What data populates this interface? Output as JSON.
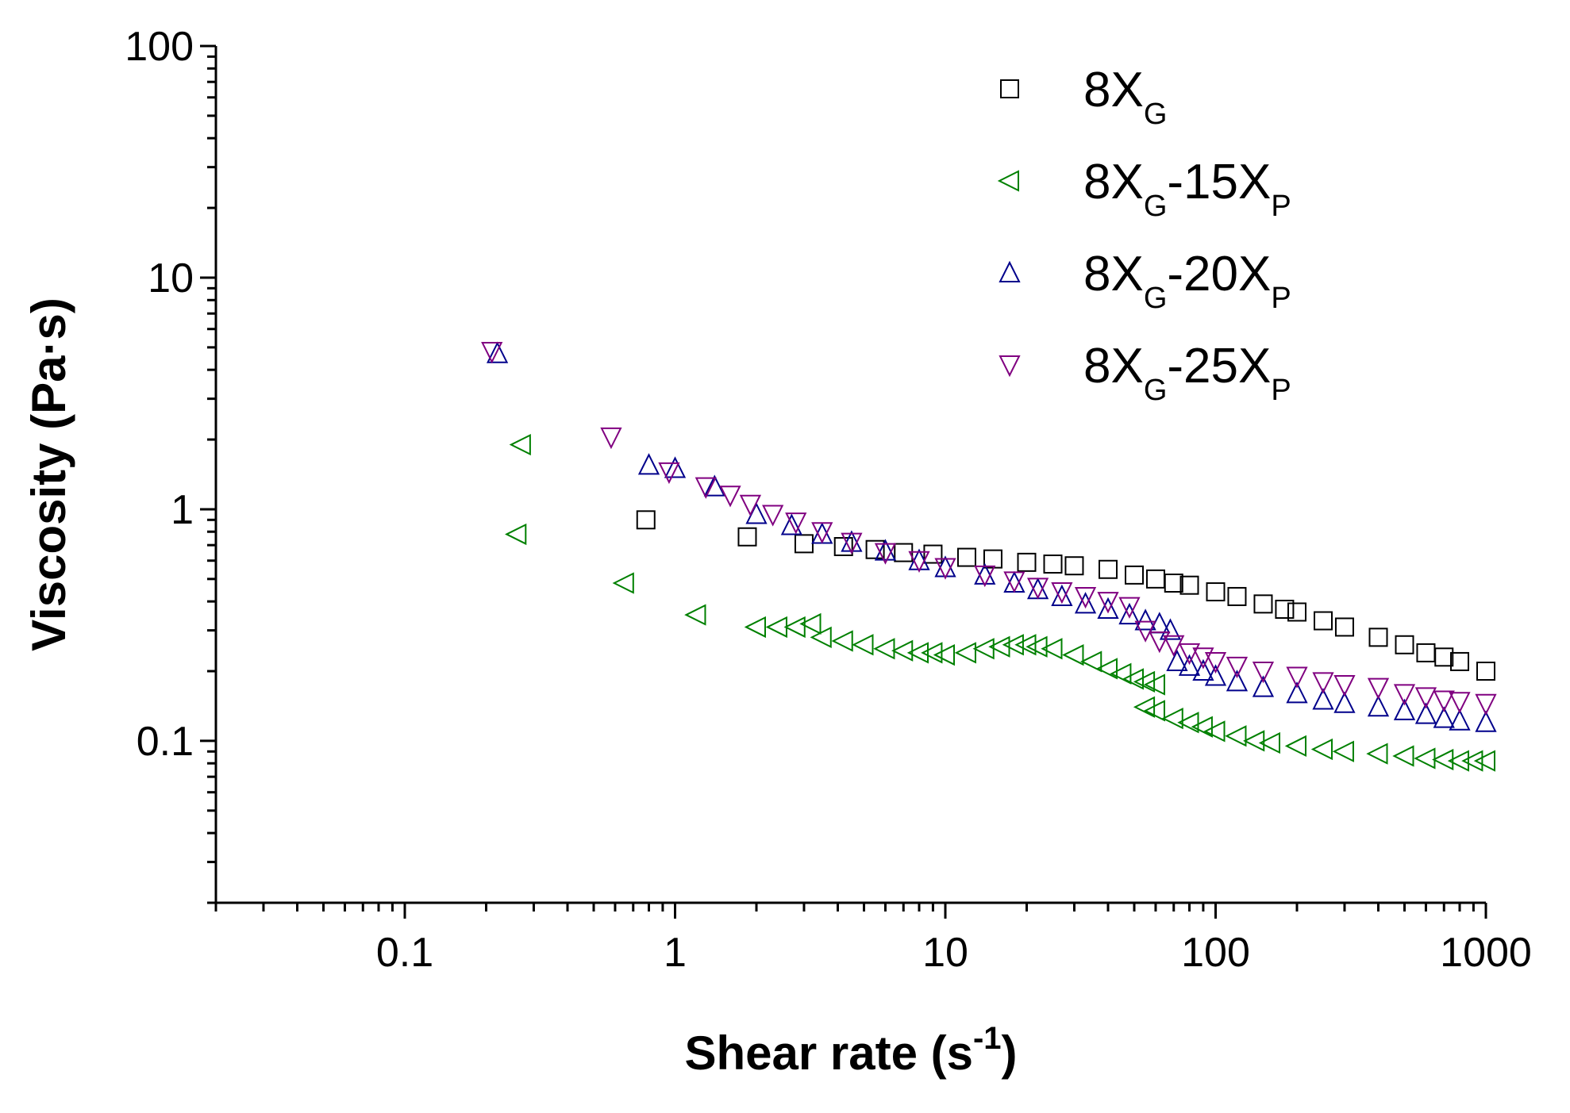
{
  "chart_data": {
    "type": "scatter",
    "xscale": "log",
    "yscale": "log",
    "xlim": [
      0.02,
      1000
    ],
    "ylim": [
      0.02,
      100
    ],
    "x_ticks": [
      {
        "value": 0.1,
        "label": "0.1"
      },
      {
        "value": 1,
        "label": "1"
      },
      {
        "value": 10,
        "label": "10"
      },
      {
        "value": 100,
        "label": "100"
      },
      {
        "value": 1000,
        "label": "1000"
      }
    ],
    "y_ticks": [
      {
        "value": 0.1,
        "label": "0.1"
      },
      {
        "value": 1,
        "label": "1"
      },
      {
        "value": 10,
        "label": "10"
      },
      {
        "value": 100,
        "label": "100"
      }
    ],
    "xlabel": {
      "text": "Shear rate  (s",
      "sup": "-1",
      "close": ")"
    },
    "ylabel": "Viscosity (Pa·s)",
    "legend_position": "top-right",
    "series": [
      {
        "key": "8XG",
        "name_main": "8X",
        "name_sub": "G",
        "name_suffix": "",
        "name_suffix_sub": "",
        "marker": "square",
        "color": "#000000",
        "points": [
          [
            0.78,
            0.9
          ],
          [
            1.85,
            0.76
          ],
          [
            3,
            0.71
          ],
          [
            4.2,
            0.69
          ],
          [
            5.5,
            0.67
          ],
          [
            7,
            0.65
          ],
          [
            9,
            0.64
          ],
          [
            12,
            0.62
          ],
          [
            15,
            0.61
          ],
          [
            20,
            0.59
          ],
          [
            25,
            0.58
          ],
          [
            30,
            0.57
          ],
          [
            40,
            0.55
          ],
          [
            50,
            0.52
          ],
          [
            60,
            0.5
          ],
          [
            70,
            0.48
          ],
          [
            80,
            0.47
          ],
          [
            100,
            0.44
          ],
          [
            120,
            0.42
          ],
          [
            150,
            0.39
          ],
          [
            180,
            0.37
          ],
          [
            200,
            0.36
          ],
          [
            250,
            0.33
          ],
          [
            300,
            0.31
          ],
          [
            400,
            0.28
          ],
          [
            500,
            0.26
          ],
          [
            600,
            0.24
          ],
          [
            700,
            0.23
          ],
          [
            800,
            0.22
          ],
          [
            1000,
            0.2
          ]
        ]
      },
      {
        "key": "8XG-15XP",
        "name_main": "8X",
        "name_sub": "G",
        "name_suffix": "-15X",
        "name_suffix_sub": "P",
        "marker": "triangle-left",
        "color": "#008000",
        "points": [
          [
            0.27,
            1.9
          ],
          [
            0.26,
            0.78
          ],
          [
            0.65,
            0.48
          ],
          [
            1.2,
            0.35
          ],
          [
            2,
            0.31
          ],
          [
            2.4,
            0.31
          ],
          [
            2.8,
            0.31
          ],
          [
            3.2,
            0.32
          ],
          [
            3.5,
            0.28
          ],
          [
            4.2,
            0.27
          ],
          [
            5,
            0.26
          ],
          [
            6,
            0.25
          ],
          [
            7,
            0.245
          ],
          [
            8,
            0.24
          ],
          [
            9,
            0.24
          ],
          [
            10,
            0.235
          ],
          [
            12,
            0.24
          ],
          [
            14,
            0.25
          ],
          [
            16,
            0.255
          ],
          [
            18,
            0.26
          ],
          [
            20,
            0.26
          ],
          [
            22,
            0.255
          ],
          [
            25,
            0.25
          ],
          [
            30,
            0.235
          ],
          [
            35,
            0.22
          ],
          [
            40,
            0.205
          ],
          [
            45,
            0.195
          ],
          [
            50,
            0.185
          ],
          [
            55,
            0.18
          ],
          [
            60,
            0.175
          ],
          [
            55,
            0.14
          ],
          [
            60,
            0.135
          ],
          [
            70,
            0.125
          ],
          [
            80,
            0.12
          ],
          [
            90,
            0.115
          ],
          [
            100,
            0.11
          ],
          [
            120,
            0.105
          ],
          [
            140,
            0.1
          ],
          [
            160,
            0.098
          ],
          [
            200,
            0.095
          ],
          [
            250,
            0.092
          ],
          [
            300,
            0.09
          ],
          [
            400,
            0.088
          ],
          [
            500,
            0.086
          ],
          [
            600,
            0.084
          ],
          [
            700,
            0.083
          ],
          [
            800,
            0.082
          ],
          [
            900,
            0.082
          ],
          [
            1000,
            0.082
          ]
        ]
      },
      {
        "key": "8XG-20XP",
        "name_main": "8X",
        "name_sub": "G",
        "name_suffix": "-20X",
        "name_suffix_sub": "P",
        "marker": "triangle-up",
        "color": "#00008b",
        "points": [
          [
            0.22,
            4.7
          ],
          [
            0.8,
            1.55
          ],
          [
            1,
            1.5
          ],
          [
            1.4,
            1.25
          ],
          [
            2,
            0.95
          ],
          [
            2.7,
            0.85
          ],
          [
            3.5,
            0.78
          ],
          [
            4.5,
            0.72
          ],
          [
            6,
            0.66
          ],
          [
            8,
            0.6
          ],
          [
            10,
            0.56
          ],
          [
            14,
            0.52
          ],
          [
            18,
            0.48
          ],
          [
            22,
            0.45
          ],
          [
            27,
            0.42
          ],
          [
            33,
            0.39
          ],
          [
            40,
            0.37
          ],
          [
            48,
            0.35
          ],
          [
            55,
            0.33
          ],
          [
            62,
            0.32
          ],
          [
            68,
            0.3
          ],
          [
            72,
            0.22
          ],
          [
            80,
            0.21
          ],
          [
            90,
            0.2
          ],
          [
            100,
            0.19
          ],
          [
            120,
            0.18
          ],
          [
            150,
            0.17
          ],
          [
            200,
            0.16
          ],
          [
            250,
            0.15
          ],
          [
            300,
            0.145
          ],
          [
            400,
            0.14
          ],
          [
            500,
            0.135
          ],
          [
            600,
            0.13
          ],
          [
            700,
            0.125
          ],
          [
            800,
            0.122
          ],
          [
            1000,
            0.12
          ]
        ]
      },
      {
        "key": "8XG-25XP",
        "name_main": "8X",
        "name_sub": "G",
        "name_suffix": "-25X",
        "name_suffix_sub": "P",
        "marker": "triangle-down",
        "color": "#800080",
        "points": [
          [
            0.21,
            4.8
          ],
          [
            0.58,
            2.05
          ],
          [
            0.95,
            1.45
          ],
          [
            1.3,
            1.25
          ],
          [
            1.6,
            1.15
          ],
          [
            1.9,
            1.05
          ],
          [
            2.3,
            0.95
          ],
          [
            2.8,
            0.88
          ],
          [
            3.5,
            0.8
          ],
          [
            4.5,
            0.72
          ],
          [
            6,
            0.65
          ],
          [
            8,
            0.6
          ],
          [
            10,
            0.56
          ],
          [
            14,
            0.52
          ],
          [
            18,
            0.49
          ],
          [
            22,
            0.46
          ],
          [
            27,
            0.44
          ],
          [
            33,
            0.42
          ],
          [
            40,
            0.4
          ],
          [
            48,
            0.38
          ],
          [
            55,
            0.3
          ],
          [
            62,
            0.27
          ],
          [
            70,
            0.26
          ],
          [
            80,
            0.24
          ],
          [
            90,
            0.23
          ],
          [
            100,
            0.22
          ],
          [
            120,
            0.21
          ],
          [
            150,
            0.2
          ],
          [
            200,
            0.19
          ],
          [
            250,
            0.18
          ],
          [
            300,
            0.175
          ],
          [
            400,
            0.17
          ],
          [
            500,
            0.16
          ],
          [
            600,
            0.155
          ],
          [
            700,
            0.15
          ],
          [
            800,
            0.148
          ],
          [
            1000,
            0.145
          ]
        ]
      }
    ]
  }
}
